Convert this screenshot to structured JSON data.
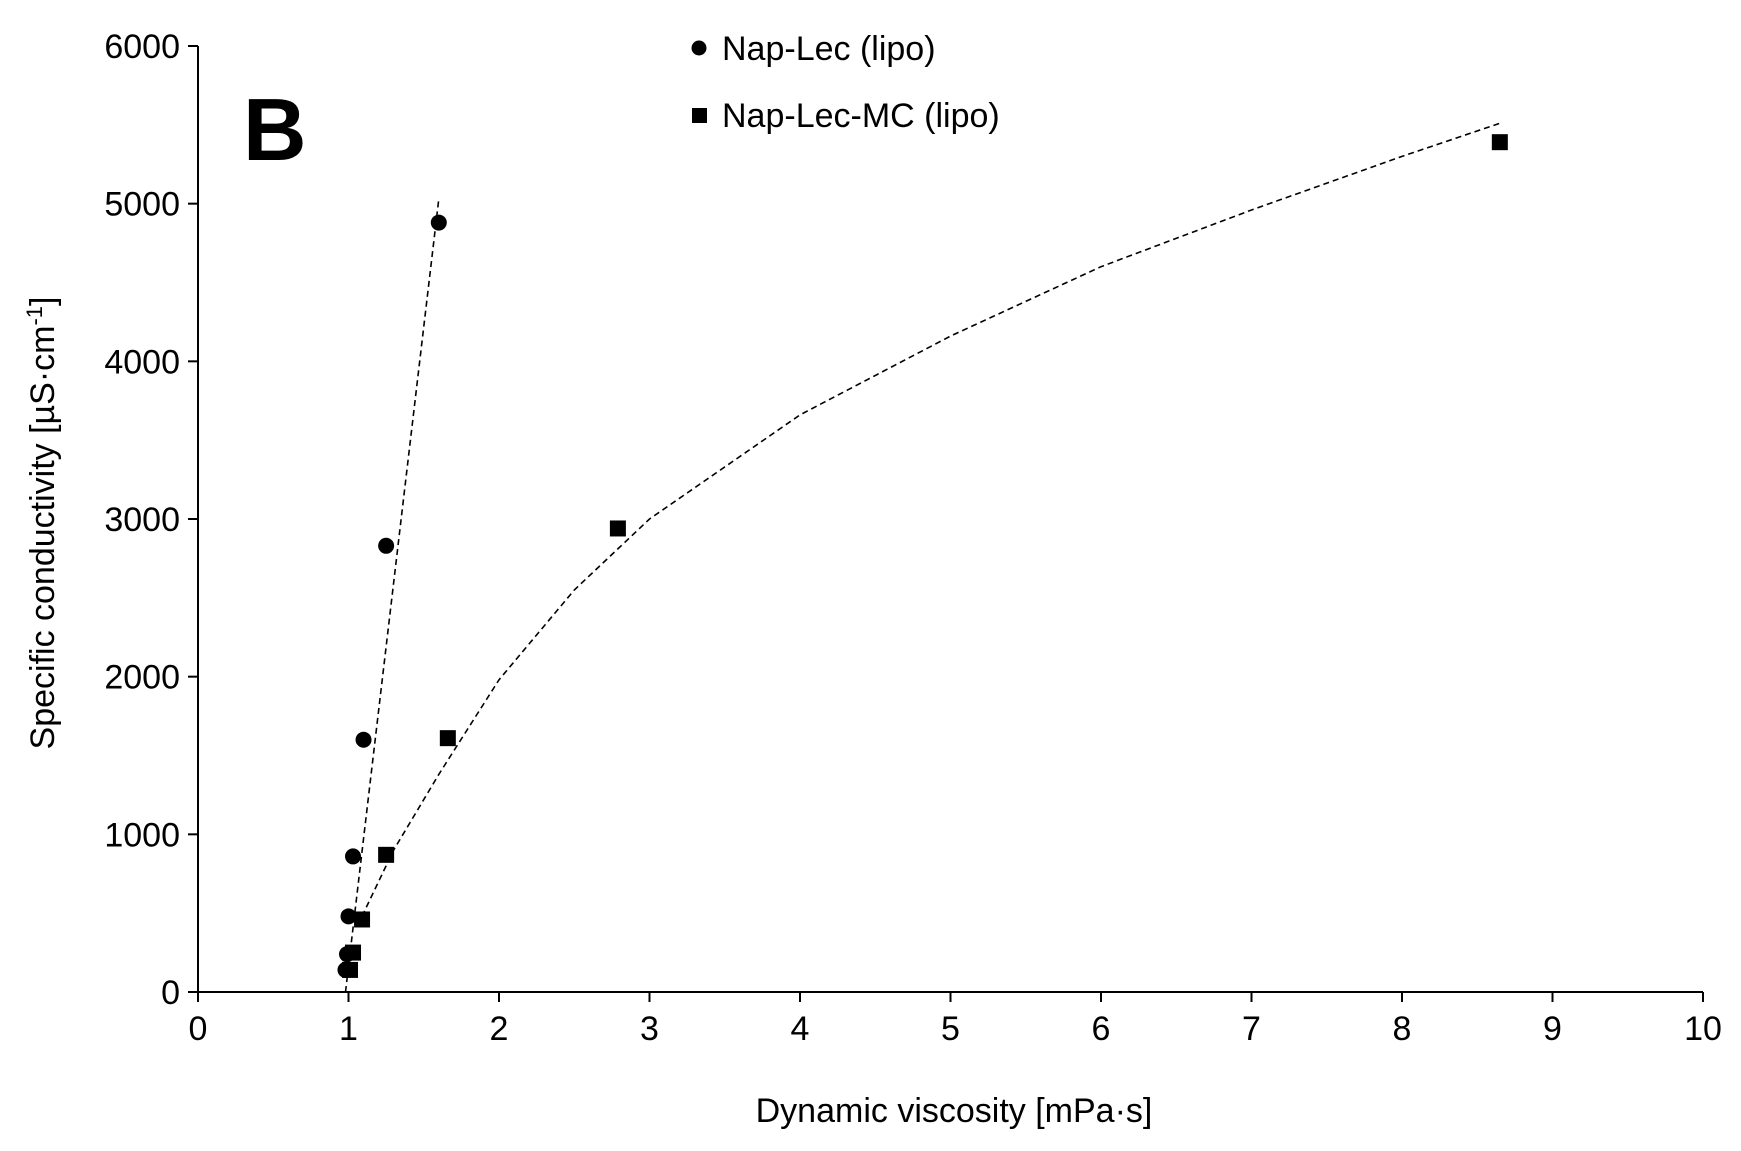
{
  "chart_data": {
    "type": "scatter",
    "panel_label": "B",
    "xlabel": "Dynamic viscosity [mPa·s]",
    "ylabel_main": "Specific conductivity [µS·cm",
    "ylabel_sup": "-1",
    "ylabel_close": "]",
    "xlim": [
      0,
      10
    ],
    "ylim": [
      0,
      6000
    ],
    "xticks": [
      "0",
      "1",
      "2",
      "3",
      "4",
      "5",
      "6",
      "7",
      "8",
      "9",
      "10"
    ],
    "yticks": [
      "0",
      "1000",
      "2000",
      "3000",
      "4000",
      "5000",
      "6000"
    ],
    "legend_position": "top-center",
    "series": [
      {
        "name": "Nap-Lec (lipo)",
        "marker": "circle",
        "color": "#000000",
        "trendline": "linear",
        "points": [
          {
            "x": 0.98,
            "y": 140
          },
          {
            "x": 0.99,
            "y": 240
          },
          {
            "x": 1.0,
            "y": 480
          },
          {
            "x": 1.03,
            "y": 860
          },
          {
            "x": 1.1,
            "y": 1600
          },
          {
            "x": 1.25,
            "y": 2830
          },
          {
            "x": 1.6,
            "y": 4880
          }
        ],
        "trend_range": [
          0.98,
          1.6
        ],
        "trend_points": [
          {
            "x": 0.98,
            "y": 0
          },
          {
            "x": 1.6,
            "y": 5030
          }
        ]
      },
      {
        "name": "Nap-Lec-MC (lipo)",
        "marker": "square",
        "color": "#000000",
        "trendline": "power",
        "points": [
          {
            "x": 1.01,
            "y": 140
          },
          {
            "x": 1.03,
            "y": 250
          },
          {
            "x": 1.09,
            "y": 460
          },
          {
            "x": 1.25,
            "y": 870
          },
          {
            "x": 1.66,
            "y": 1610
          },
          {
            "x": 2.79,
            "y": 2940
          },
          {
            "x": 8.65,
            "y": 5390
          }
        ],
        "trend_range": [
          1.09,
          8.65
        ],
        "trend_points": [
          {
            "x": 1.09,
            "y": 480
          },
          {
            "x": 1.3,
            "y": 900
          },
          {
            "x": 1.6,
            "y": 1380
          },
          {
            "x": 2.0,
            "y": 1980
          },
          {
            "x": 2.5,
            "y": 2550
          },
          {
            "x": 3.0,
            "y": 3000
          },
          {
            "x": 4.0,
            "y": 3660
          },
          {
            "x": 5.0,
            "y": 4160
          },
          {
            "x": 6.0,
            "y": 4600
          },
          {
            "x": 7.0,
            "y": 4960
          },
          {
            "x": 8.0,
            "y": 5300
          },
          {
            "x": 8.65,
            "y": 5510
          }
        ]
      }
    ]
  }
}
